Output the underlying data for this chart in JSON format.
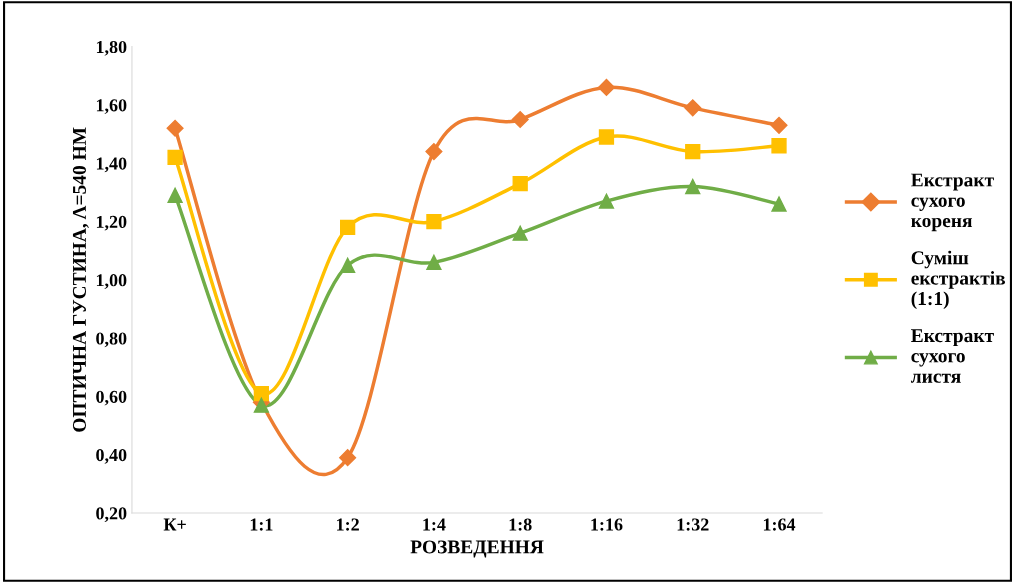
{
  "chart_data": {
    "type": "line",
    "xlabel": "РОЗВЕДЕННЯ",
    "ylabel": "ОПТИЧНА ГУСТИНА, Λ=540 НМ",
    "categories": [
      "К+",
      "1:1",
      "1:2",
      "1:4",
      "1:8",
      "1:16",
      "1:32",
      "1:64"
    ],
    "series": [
      {
        "name": "Екстракт сухого кореня",
        "color": "#ed7d31",
        "marker": "diamond",
        "values": [
          1.52,
          0.58,
          0.39,
          1.44,
          1.55,
          1.66,
          1.59,
          1.53
        ]
      },
      {
        "name": "Суміш екстрактів (1:1)",
        "color": "#ffc000",
        "marker": "square",
        "values": [
          1.42,
          0.61,
          1.18,
          1.2,
          1.33,
          1.49,
          1.44,
          1.46
        ]
      },
      {
        "name": "Екстракт сухого листя",
        "color": "#70ad47",
        "marker": "triangle",
        "values": [
          1.29,
          0.57,
          1.05,
          1.06,
          1.16,
          1.27,
          1.32,
          1.26
        ]
      }
    ],
    "ylim": [
      0.2,
      1.8
    ],
    "yticks": [
      {
        "value": 0.2,
        "label": "0,20"
      },
      {
        "value": 0.4,
        "label": "0,40"
      },
      {
        "value": 0.6,
        "label": "0,60"
      },
      {
        "value": 0.8,
        "label": "0,80"
      },
      {
        "value": 1.0,
        "label": "1,00"
      },
      {
        "value": 1.2,
        "label": "1,20"
      },
      {
        "value": 1.4,
        "label": "1,40"
      },
      {
        "value": 1.6,
        "label": "1,60"
      },
      {
        "value": 1.8,
        "label": "1,80"
      }
    ],
    "grid": false,
    "legend": "right",
    "line_style": "solid"
  }
}
